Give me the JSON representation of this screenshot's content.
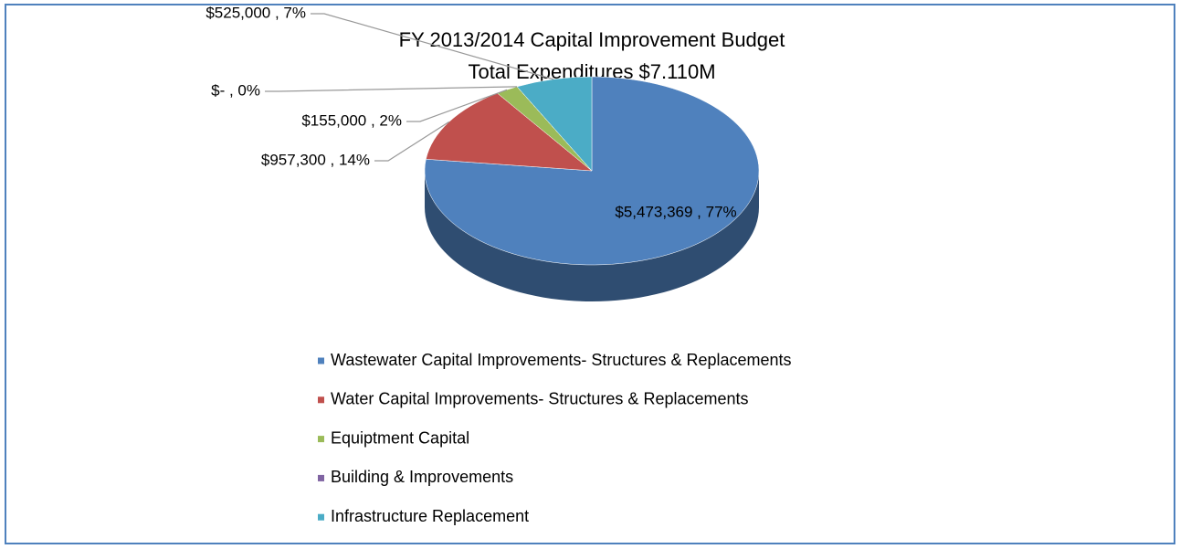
{
  "chart_data": {
    "type": "pie3d",
    "title": "FY 2013/2014 Capital Improvement Budget",
    "subtitle": "Total Expenditures $7.110M",
    "categories": [
      "Wastewater Capital Improvements- Structures & Replacements",
      "Water Capital Improvements- Structures & Replacements",
      "Equiptment Capital",
      "Building & Improvements",
      "Infrastructure Replacement"
    ],
    "values": [
      5473369,
      957300,
      155000,
      0,
      525000
    ],
    "value_labels": [
      "$5,473,369 , 77%",
      "$957,300 , 14%",
      "$155,000 , 2%",
      "$- , 0%",
      "$525,000 , 7%"
    ],
    "colors": [
      "#4f81bd",
      "#c0504d",
      "#9bbb59",
      "#8064a2",
      "#4bacc6"
    ],
    "legend": "bottom"
  }
}
